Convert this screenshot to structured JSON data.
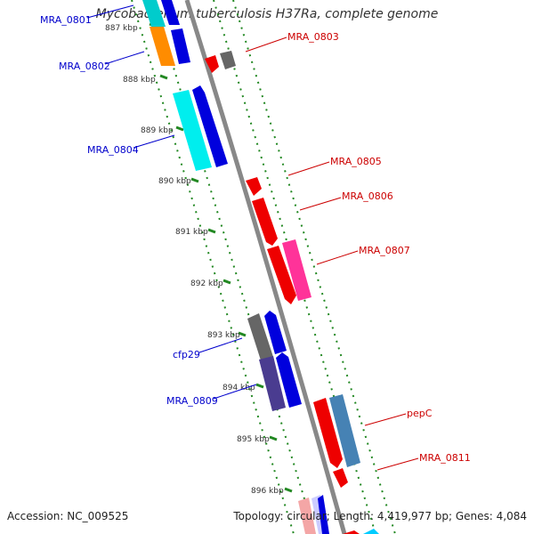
{
  "title": "Mycobacterium tuberculosis H37Ra, complete genome",
  "footer": {
    "accession": "Accession: NC_009525",
    "stats": "Topology: circular; Length: 4,419,977 bp; Genes: 4,084"
  },
  "ticks": [
    "887 kbp",
    "888 kbp",
    "889 kbp",
    "890 kbp",
    "891 kbp",
    "892 kbp",
    "893 kbp",
    "894 kbp",
    "895 kbp",
    "896 kbp"
  ],
  "forward_labels": [
    "MRA_0801",
    "MRA_0802",
    "MRA_0804",
    "cfp29",
    "MRA_0809"
  ],
  "reverse_labels": [
    "MRA_0803",
    "MRA_0805",
    "MRA_0806",
    "MRA_0807",
    "pepC",
    "MRA_0811"
  ],
  "colors": {
    "forward_label": "#0000cc",
    "reverse_label": "#cc0000",
    "backbone": "#888888",
    "tick_marks": "#228822"
  }
}
